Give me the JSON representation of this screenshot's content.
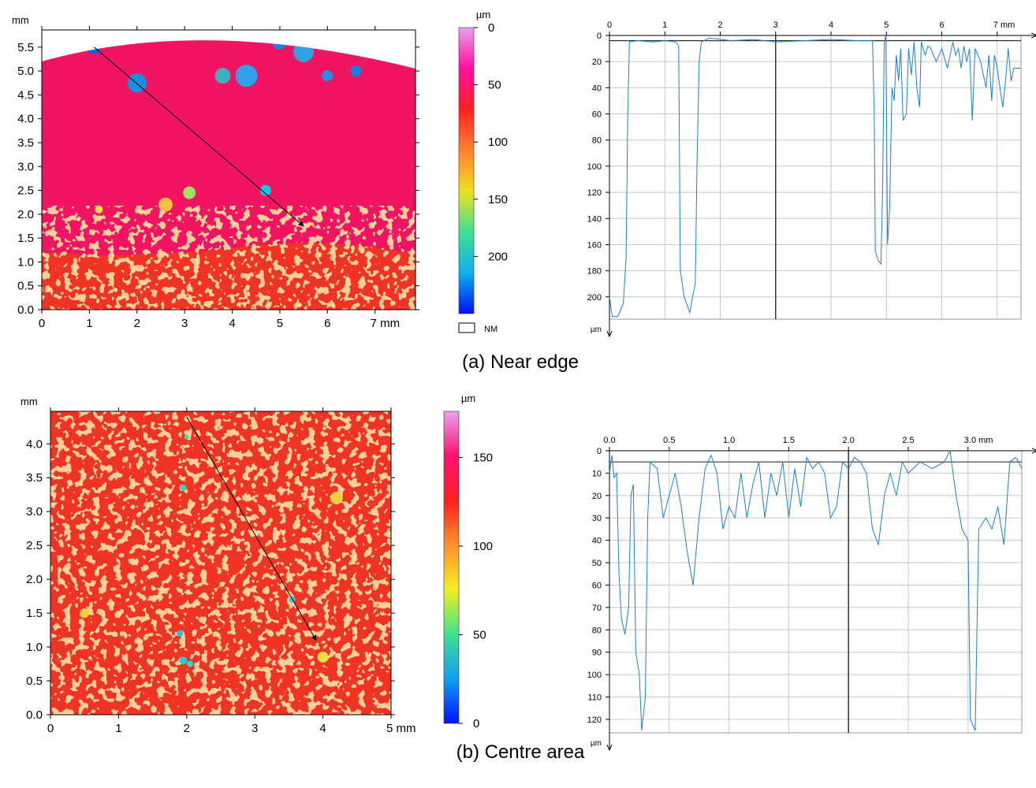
{
  "chart_data": [
    {
      "type": "map",
      "y_unit": "mm",
      "xlim": [
        0,
        7.85
      ],
      "ylim": [
        0,
        5.86
      ],
      "xticks": [
        0,
        1,
        2,
        3,
        4,
        5,
        6,
        {
          "value": 7,
          "label": "7 mm"
        }
      ],
      "yticks": [
        {
          "value": 0,
          "label": "0.0"
        },
        0.5,
        {
          "value": 1,
          "label": "1.0"
        },
        1.5,
        {
          "value": 2,
          "label": "2.0"
        },
        2.5,
        {
          "value": 3,
          "label": "3.0"
        },
        3.5,
        {
          "value": 4,
          "label": "4.0"
        },
        4.5,
        {
          "value": 5,
          "label": "5.0"
        },
        5.5
      ],
      "colorbar": {
        "unit": "µm",
        "lim": [
          0,
          250
        ],
        "ticks": [
          0,
          50,
          100,
          150,
          200
        ],
        "reversed": true,
        "legend": "NM",
        "colors": [
          "#e8a0f0",
          "#ff10a0",
          "#ff2020",
          "#ff8030",
          "#f0e020",
          "#40e090",
          "#10b0f0",
          "#0010ff"
        ]
      }
    },
    {
      "type": "line",
      "y_unit": "µm",
      "color": "#1a7fd8",
      "xlim": [
        0,
        7.43
      ],
      "ylim": [
        0,
        217
      ],
      "xticks": [
        0,
        1,
        2,
        3,
        4,
        5,
        6,
        {
          "value": 7,
          "label": "7 mm"
        }
      ],
      "yticks": [
        0,
        20,
        40,
        60,
        80,
        100,
        120,
        140,
        160,
        180,
        200
      ],
      "grid": true,
      "cursor_x": 3,
      "reference_y": 4,
      "x": [
        0,
        0.05,
        0.15,
        0.25,
        0.3,
        0.33,
        0.36,
        0.5,
        0.8,
        1.0,
        1.2,
        1.25,
        1.28,
        1.35,
        1.45,
        1.5,
        1.55,
        1.58,
        1.62,
        1.66,
        1.8,
        2.2,
        2.6,
        3.0,
        3.5,
        4.0,
        4.5,
        4.75,
        4.78,
        4.8,
        4.85,
        4.9,
        4.93,
        4.96,
        4.99,
        5.02,
        5.06,
        5.1,
        5.14,
        5.18,
        5.22,
        5.26,
        5.3,
        5.36,
        5.4,
        5.45,
        5.5,
        5.55,
        5.6,
        5.63,
        5.7,
        5.75,
        5.8,
        5.9,
        6.0,
        6.1,
        6.2,
        6.25,
        6.3,
        6.35,
        6.4,
        6.45,
        6.5,
        6.55,
        6.6,
        6.7,
        6.8,
        6.85,
        6.9,
        6.95,
        7.0,
        7.1,
        7.15,
        7.2,
        7.25,
        7.3,
        7.43
      ],
      "values": [
        200,
        215,
        215,
        205,
        170,
        60,
        5,
        4,
        5,
        4,
        5,
        8,
        180,
        200,
        212,
        200,
        190,
        100,
        20,
        5,
        2,
        4,
        3,
        5,
        4,
        3,
        4,
        4,
        60,
        165,
        172,
        175,
        120,
        5,
        0,
        160,
        130,
        40,
        50,
        15,
        35,
        10,
        65,
        60,
        10,
        30,
        5,
        40,
        55,
        5,
        15,
        8,
        10,
        20,
        10,
        25,
        5,
        15,
        10,
        25,
        8,
        20,
        10,
        65,
        10,
        20,
        40,
        15,
        50,
        15,
        25,
        55,
        35,
        10,
        35,
        25,
        25
      ]
    },
    {
      "type": "map",
      "y_unit": "mm",
      "xlim": [
        0,
        5
      ],
      "ylim": [
        0,
        4.48
      ],
      "xticks": [
        0,
        1,
        2,
        3,
        4,
        {
          "value": 5,
          "label": "5 mm"
        }
      ],
      "yticks": [
        {
          "value": 0,
          "label": "0.0"
        },
        0.5,
        {
          "value": 1,
          "label": "1.0"
        },
        1.5,
        {
          "value": 2,
          "label": "2.0"
        },
        2.5,
        {
          "value": 3,
          "label": "3.0"
        },
        3.5,
        {
          "value": 4,
          "label": "4.0"
        }
      ],
      "colorbar": {
        "unit": "µm",
        "lim": [
          0,
          176
        ],
        "ticks": [
          0,
          50,
          100,
          150
        ],
        "reversed": false,
        "colors": [
          "#0010ff",
          "#10a0f0",
          "#40e090",
          "#f0f020",
          "#ff9030",
          "#ff2020",
          "#ff1070",
          "#e8a0f0"
        ]
      }
    },
    {
      "type": "line",
      "y_unit": "µm",
      "color": "#1a7fd8",
      "xlim": [
        0,
        3.45
      ],
      "ylim": [
        0,
        126
      ],
      "xticks": [
        {
          "value": 0,
          "label": "0.0"
        },
        0.5,
        {
          "value": 1,
          "label": "1.0"
        },
        1.5,
        {
          "value": 2,
          "label": "2.0"
        },
        2.5,
        {
          "value": 3,
          "label": "3.0 mm"
        }
      ],
      "yticks": [
        0,
        10,
        20,
        30,
        40,
        50,
        60,
        70,
        80,
        90,
        100,
        110,
        120
      ],
      "grid": true,
      "cursor_x": 2,
      "reference_y": 5,
      "x": [
        0,
        0.02,
        0.04,
        0.06,
        0.08,
        0.1,
        0.13,
        0.16,
        0.18,
        0.2,
        0.22,
        0.25,
        0.27,
        0.3,
        0.32,
        0.34,
        0.4,
        0.45,
        0.5,
        0.55,
        0.6,
        0.65,
        0.7,
        0.75,
        0.8,
        0.85,
        0.9,
        0.95,
        1.0,
        1.05,
        1.1,
        1.15,
        1.2,
        1.25,
        1.3,
        1.35,
        1.4,
        1.45,
        1.5,
        1.55,
        1.6,
        1.65,
        1.7,
        1.75,
        1.8,
        1.85,
        1.9,
        1.95,
        2.0,
        2.05,
        2.1,
        2.15,
        2.2,
        2.25,
        2.3,
        2.35,
        2.4,
        2.45,
        2.5,
        2.6,
        2.7,
        2.8,
        2.85,
        2.9,
        2.95,
        3.0,
        3.02,
        3.06,
        3.09,
        3.15,
        3.2,
        3.25,
        3.3,
        3.35,
        3.4,
        3.45
      ],
      "values": [
        10,
        2,
        12,
        10,
        55,
        75,
        82,
        70,
        20,
        15,
        90,
        100,
        125,
        110,
        30,
        5,
        8,
        30,
        20,
        10,
        25,
        45,
        60,
        30,
        8,
        2,
        10,
        35,
        25,
        30,
        10,
        30,
        15,
        5,
        30,
        10,
        20,
        5,
        30,
        8,
        25,
        3,
        8,
        5,
        10,
        30,
        25,
        5,
        8,
        3,
        5,
        10,
        35,
        42,
        20,
        10,
        20,
        5,
        10,
        5,
        8,
        5,
        0,
        20,
        35,
        40,
        120,
        125,
        35,
        30,
        35,
        25,
        42,
        5,
        3,
        8
      ]
    }
  ],
  "captions": [
    "(a) Near edge",
    "(b) Centre area"
  ]
}
